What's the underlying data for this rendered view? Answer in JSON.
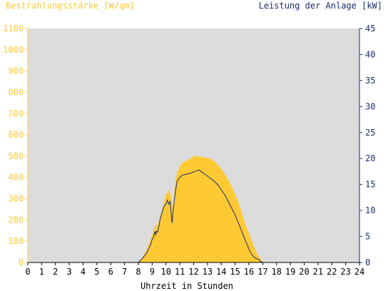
{
  "chart_data": {
    "type": "area",
    "title_left": "Bestrahlungsstärke [W/qm]",
    "title_right": "Leistung der Anlage [kW]",
    "xlabel": "Uhrzeit in Stunden",
    "xlim": [
      0,
      24
    ],
    "x_ticks": [
      "0",
      "1",
      "2",
      "3",
      "4",
      "5",
      "6",
      "7",
      "8",
      "9",
      "10",
      "11",
      "12",
      "13",
      "14",
      "15",
      "16",
      "17",
      "18",
      "19",
      "20",
      "21",
      "22",
      "23",
      "24"
    ],
    "y_left": {
      "lim": [
        0,
        1100
      ],
      "ticks": [
        "0",
        "100",
        "200",
        "300",
        "400",
        "500",
        "600",
        "700",
        "800",
        "900",
        "1000",
        "1100"
      ]
    },
    "y_right": {
      "lim": [
        0,
        45
      ],
      "ticks": [
        "0",
        "5",
        "10",
        "15",
        "20",
        "25",
        "30",
        "35",
        "40",
        "45"
      ]
    },
    "grid": false,
    "colors": {
      "plot_bg": "#dcdcdc",
      "irradiance": "#ffc933",
      "power": "#1a2d6b",
      "left_axis": "#ffc933",
      "right_axis": "#1a2d6b",
      "x_axis": "#000000"
    },
    "series": [
      {
        "name": "Bestrahlungsstärke [W/qm]",
        "axis": "left",
        "style": "filled-area",
        "x": [
          0,
          8.0,
          8.3,
          8.6,
          8.9,
          9.1,
          9.3,
          9.4,
          9.5,
          9.6,
          9.8,
          10.0,
          10.2,
          10.4,
          10.5,
          10.6,
          10.7,
          10.8,
          11.0,
          11.2,
          11.5,
          11.8,
          12.0,
          12.3,
          12.7,
          13.0,
          13.3,
          13.6,
          14.0,
          14.4,
          14.8,
          15.2,
          15.5,
          15.8,
          16.1,
          16.4,
          16.6,
          16.8,
          17.0,
          24
        ],
        "y": [
          0,
          0,
          25,
          60,
          110,
          150,
          180,
          170,
          200,
          220,
          270,
          320,
          340,
          300,
          240,
          330,
          390,
          420,
          450,
          470,
          480,
          490,
          500,
          500,
          495,
          492,
          485,
          470,
          440,
          400,
          350,
          290,
          230,
          170,
          120,
          70,
          40,
          20,
          0,
          0
        ]
      },
      {
        "name": "Leistung der Anlage [kW]",
        "axis": "right",
        "style": "line",
        "x": [
          0,
          8.0,
          8.3,
          8.6,
          8.9,
          9.0,
          9.1,
          9.15,
          9.2,
          9.25,
          9.3,
          9.4,
          9.5,
          9.6,
          9.7,
          9.8,
          9.9,
          10.0,
          10.1,
          10.2,
          10.3,
          10.35,
          10.4,
          10.45,
          10.5,
          10.55,
          10.6,
          10.7,
          10.8,
          11.0,
          11.2,
          11.5,
          11.8,
          12.0,
          12.2,
          12.4,
          12.6,
          12.8,
          13.0,
          13.2,
          13.5,
          13.8,
          14.0,
          14.3,
          14.6,
          15.0,
          15.3,
          15.6,
          15.9,
          16.1,
          16.3,
          16.5,
          16.7,
          16.8,
          17.0,
          24
        ],
        "y": [
          0,
          0,
          0.8,
          1.8,
          3.5,
          4.5,
          4.8,
          5.6,
          6.0,
          5.2,
          6.0,
          5.8,
          7.2,
          8.6,
          9.4,
          10.4,
          11.0,
          11.2,
          12.0,
          11.2,
          11.8,
          10.2,
          8.4,
          7.6,
          9.6,
          10.8,
          12.0,
          14.0,
          15.6,
          16.4,
          16.8,
          17.0,
          17.2,
          17.4,
          17.6,
          17.8,
          17.4,
          17.0,
          16.6,
          16.2,
          15.6,
          14.8,
          14.0,
          12.8,
          11.2,
          9.2,
          7.2,
          5.2,
          3.2,
          2.0,
          1.2,
          0.8,
          0.6,
          0.3,
          0,
          0
        ]
      }
    ]
  }
}
